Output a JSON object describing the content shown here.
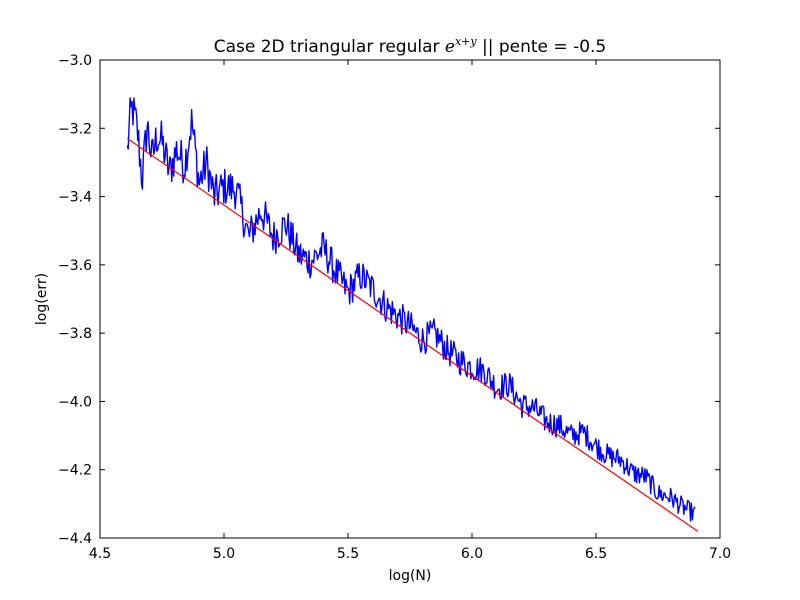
{
  "chart_data": {
    "type": "line",
    "title": {
      "prefix": "Case 2D triangular regular ",
      "math_base": "e",
      "math_exp": "x+y",
      "suffix": " || pente = -0.5"
    },
    "xlabel": "log(N)",
    "ylabel": "log(err)",
    "xlim": [
      4.5,
      7.0
    ],
    "ylim": [
      -4.4,
      -3.0
    ],
    "xticks": [
      4.5,
      5.0,
      5.5,
      6.0,
      6.5,
      7.0
    ],
    "xtick_labels": [
      "4.5",
      "5.0",
      "5.5",
      "6.0",
      "6.5",
      "7.0"
    ],
    "yticks": [
      -4.4,
      -4.2,
      -4.0,
      -3.8,
      -3.6,
      -3.4,
      -3.2,
      -3.0
    ],
    "ytick_labels": [
      "−4.4",
      "−4.2",
      "−4.0",
      "−3.8",
      "−3.6",
      "−3.4",
      "−3.2",
      "−3.0"
    ],
    "grid": false,
    "legend": "none",
    "series": [
      {
        "color": "#0000ff",
        "style": "noisy",
        "x": [
          4.61,
          4.62,
          4.63,
          4.65,
          4.67,
          4.69,
          4.71,
          4.73,
          4.75,
          4.78,
          4.81,
          4.84,
          4.87,
          4.9,
          4.93,
          4.96,
          5.0,
          5.05,
          5.1,
          5.15,
          5.2,
          5.25,
          5.3,
          5.35,
          5.4,
          5.45,
          5.5,
          5.55,
          5.6,
          5.65,
          5.7,
          5.75,
          5.8,
          5.85,
          5.9,
          5.95,
          6.0,
          6.05,
          6.1,
          6.15,
          6.2,
          6.25,
          6.3,
          6.35,
          6.4,
          6.45,
          6.5,
          6.55,
          6.6,
          6.65,
          6.7,
          6.75,
          6.8,
          6.85,
          6.9
        ],
        "y": [
          -3.27,
          -3.18,
          -3.14,
          -3.2,
          -3.35,
          -3.19,
          -3.29,
          -3.22,
          -3.24,
          -3.33,
          -3.26,
          -3.31,
          -3.18,
          -3.36,
          -3.3,
          -3.4,
          -3.37,
          -3.38,
          -3.52,
          -3.44,
          -3.52,
          -3.48,
          -3.57,
          -3.59,
          -3.55,
          -3.62,
          -3.68,
          -3.63,
          -3.67,
          -3.72,
          -3.75,
          -3.78,
          -3.82,
          -3.8,
          -3.85,
          -3.88,
          -3.9,
          -3.91,
          -3.96,
          -3.95,
          -4.01,
          -4.02,
          -4.06,
          -4.07,
          -4.1,
          -4.09,
          -4.13,
          -4.16,
          -4.17,
          -4.21,
          -4.22,
          -4.27,
          -4.28,
          -4.31,
          -4.33
        ],
        "noise": 0.04
      },
      {
        "color": "#ff0000",
        "style": "line",
        "x": [
          4.61,
          6.91
        ],
        "y": [
          -3.23,
          -4.38
        ]
      }
    ]
  }
}
